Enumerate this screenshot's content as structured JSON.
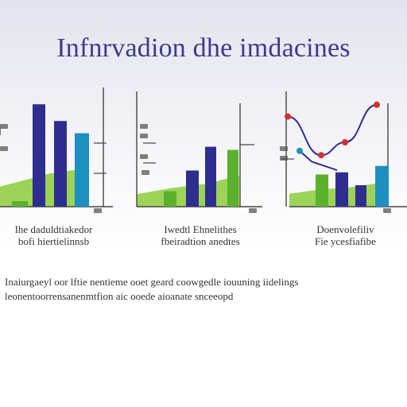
{
  "title": "Infnrvadion dhe imdacines",
  "colors": {
    "navy": "#2e2e8f",
    "teal": "#1d8fc0",
    "green": "#5bb02c",
    "red": "#d62f2f",
    "area": "#8ccd3a",
    "title": "#3d3a8c"
  },
  "captions": [
    {
      "line1": "Ihe daduldtiakedor",
      "line2": "bofi hiertielinnsb"
    },
    {
      "line1": "Iwedtl Ehnelithes",
      "line2": "fbeiradtion anedtes"
    },
    {
      "line1": "Doenvolefiliv",
      "line2": "Fie ycesfiafibe"
    }
  ],
  "body": {
    "line1": "Inaiurgaeyl oor lftie nentieme ooet geard coowgedle iouuning iidelings",
    "line2": "leonentoorrensanenmtfion aic ooede aioanate snceeopd"
  },
  "chart_data": [
    {
      "type": "bar",
      "categories": [
        "1",
        "2",
        "3",
        "4"
      ],
      "values": [
        5,
        92,
        77,
        66
      ],
      "colors": [
        "#5bb02c",
        "#2e2e8f",
        "#2e2e8f",
        "#1d8fc0"
      ],
      "area": [
        18,
        24,
        30,
        33
      ],
      "ylim": [
        0,
        100
      ],
      "tick_labels": [],
      "title": ""
    },
    {
      "type": "bar",
      "categories": [
        "1",
        "2",
        "3",
        "4"
      ],
      "values": [
        15,
        35,
        58,
        55
      ],
      "colors": [
        "#5bb02c",
        "#2e2e8f",
        "#2e2e8f",
        "#5bb02c"
      ],
      "area": [
        12,
        18,
        22,
        30
      ],
      "ylim": [
        0,
        100
      ],
      "tick_labels": [],
      "title": ""
    },
    {
      "type": "line",
      "x": [
        0,
        1,
        2,
        3
      ],
      "y": [
        84,
        48,
        60,
        95
      ],
      "bars": {
        "values": [
          30,
          32,
          20,
          38
        ],
        "colors": [
          "#5bb02c",
          "#2e2e8f",
          "#2e2e8f",
          "#1d8fc0"
        ]
      },
      "secondary": {
        "x": [
          0,
          1,
          2
        ],
        "y": [
          52,
          42,
          34
        ]
      },
      "area": [
        12,
        16,
        18,
        22
      ],
      "ylim": [
        0,
        100
      ],
      "tick_labels": [],
      "title": ""
    }
  ]
}
